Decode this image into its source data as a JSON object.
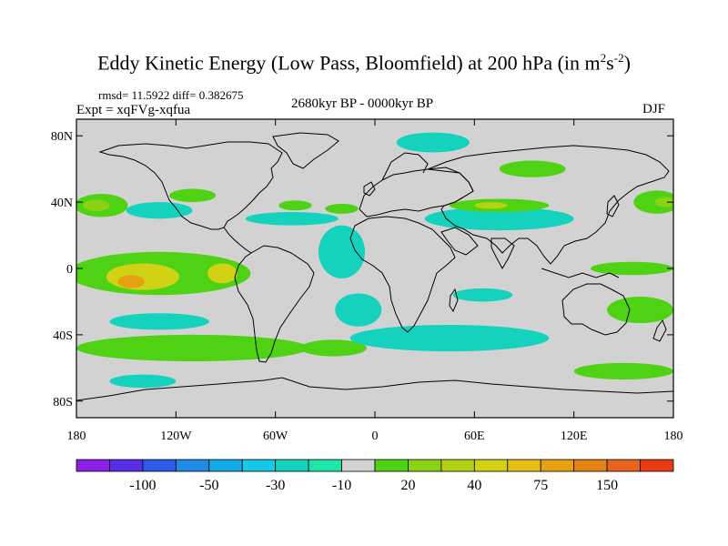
{
  "title": {
    "main": "Eddy Kinetic Energy (Low Pass, Bloomfield) at 200 hPa (in m",
    "sup1": "2",
    "mid": "s",
    "sup2": "-2",
    "end": ")"
  },
  "stats": {
    "rmsd_label": "rmsd= 11.5922 diff= 0.382675"
  },
  "experiment": "Expt = xqFVg-xqfua",
  "period": "2680kyr BP - 0000kyr BP",
  "season": "DJF",
  "axes": {
    "y_ticks": [
      {
        "lat": 80,
        "label": "80N"
      },
      {
        "lat": 40,
        "label": "40N"
      },
      {
        "lat": 0,
        "label": "0"
      },
      {
        "lat": -40,
        "label": "40S"
      },
      {
        "lat": -80,
        "label": "80S"
      }
    ],
    "x_ticks": [
      {
        "lon": -180,
        "label": "180"
      },
      {
        "lon": -120,
        "label": "120W"
      },
      {
        "lon": -60,
        "label": "60W"
      },
      {
        "lon": 0,
        "label": "0"
      },
      {
        "lon": 60,
        "label": "60E"
      },
      {
        "lon": 120,
        "label": "120E"
      },
      {
        "lon": 180,
        "label": "180"
      }
    ]
  },
  "colorbar": {
    "colors": [
      "#8c1ee6",
      "#5a2de6",
      "#2d5ae6",
      "#1e8ce6",
      "#14aae6",
      "#14c8e6",
      "#14d2be",
      "#1ee6aa",
      "#d2d2d2",
      "#50d214",
      "#8cd214",
      "#b4d214",
      "#d2d214",
      "#e6be14",
      "#e6a014",
      "#e68214",
      "#e6641e",
      "#e63c14"
    ],
    "labels": [
      {
        "after_box": 2,
        "label": "-100"
      },
      {
        "after_box": 4,
        "label": "-50"
      },
      {
        "after_box": 6,
        "label": "-30"
      },
      {
        "after_box": 8,
        "label": "-10"
      },
      {
        "after_box": 10,
        "label": "20"
      },
      {
        "after_box": 12,
        "label": "40"
      },
      {
        "after_box": 14,
        "label": "75"
      },
      {
        "after_box": 16,
        "label": "150"
      }
    ]
  },
  "map_data": {
    "background_color": "#d2d2d2",
    "anomaly_regions": [
      {
        "name": "n-pacific-west",
        "lon": -165,
        "lat": 38,
        "rx": 16,
        "ry": 7,
        "color": "#50d214"
      },
      {
        "name": "n-pacific-west-core",
        "lon": -168,
        "lat": 38,
        "rx": 8,
        "ry": 3.5,
        "color": "#8cd214"
      },
      {
        "name": "n-pacific-cyan",
        "lon": -130,
        "lat": 35,
        "rx": 20,
        "ry": 5,
        "color": "#14d2be"
      },
      {
        "name": "n-pacific-green",
        "lon": -110,
        "lat": 44,
        "rx": 14,
        "ry": 4,
        "color": "#50d214"
      },
      {
        "name": "atlantic-cyan-band",
        "lon": -50,
        "lat": 30,
        "rx": 28,
        "ry": 4,
        "color": "#14d2be"
      },
      {
        "name": "atlantic-green-north",
        "lon": -48,
        "lat": 38,
        "rx": 10,
        "ry": 3,
        "color": "#50d214"
      },
      {
        "name": "atlantic-green-north2",
        "lon": -20,
        "lat": 36,
        "rx": 10,
        "ry": 3,
        "color": "#50d214"
      },
      {
        "name": "arctic-cyan",
        "lon": 35,
        "lat": 76,
        "rx": 22,
        "ry": 6,
        "color": "#14d2be"
      },
      {
        "name": "siberia-green",
        "lon": 95,
        "lat": 60,
        "rx": 20,
        "ry": 5,
        "color": "#50d214"
      },
      {
        "name": "asia-cyan",
        "lon": 75,
        "lat": 30,
        "rx": 45,
        "ry": 7,
        "color": "#14d2be"
      },
      {
        "name": "asia-green",
        "lon": 75,
        "lat": 38,
        "rx": 30,
        "ry": 4,
        "color": "#50d214"
      },
      {
        "name": "asia-yellow",
        "lon": 70,
        "lat": 38,
        "rx": 10,
        "ry": 2,
        "color": "#b4d214"
      },
      {
        "name": "n-pacific-east",
        "lon": 170,
        "lat": 40,
        "rx": 14,
        "ry": 7,
        "color": "#50d214"
      },
      {
        "name": "n-pacific-east-core",
        "lon": 175,
        "lat": 40,
        "rx": 6,
        "ry": 3,
        "color": "#8cd214"
      },
      {
        "name": "equatorial-atlantic-cyan",
        "lon": -20,
        "lat": 10,
        "rx": 14,
        "ry": 16,
        "color": "#14d2be"
      },
      {
        "name": "s-atlantic-cyan",
        "lon": -10,
        "lat": -25,
        "rx": 14,
        "ry": 10,
        "color": "#14d2be"
      },
      {
        "name": "tropical-pacific-green",
        "lon": -130,
        "lat": -3,
        "rx": 55,
        "ry": 13,
        "color": "#50d214"
      },
      {
        "name": "tropical-pacific-yellow",
        "lon": -140,
        "lat": -5,
        "rx": 22,
        "ry": 8,
        "color": "#d2d214"
      },
      {
        "name": "tropical-pacific-orange",
        "lon": -147,
        "lat": -8,
        "rx": 8,
        "ry": 4,
        "color": "#e6a014"
      },
      {
        "name": "tropical-pacific-yellow2",
        "lon": -92,
        "lat": -3,
        "rx": 9,
        "ry": 6,
        "color": "#d2d214"
      },
      {
        "name": "south-pacific-cyan",
        "lon": -130,
        "lat": -32,
        "rx": 30,
        "ry": 5,
        "color": "#14d2be"
      },
      {
        "name": "south-pacific-green",
        "lon": -110,
        "lat": -48,
        "rx": 70,
        "ry": 8,
        "color": "#50d214"
      },
      {
        "name": "s-atlantic-band-green",
        "lon": -25,
        "lat": -48,
        "rx": 20,
        "ry": 5,
        "color": "#50d214"
      },
      {
        "name": "southern-ocean-cyan",
        "lon": 45,
        "lat": -42,
        "rx": 60,
        "ry": 8,
        "color": "#14d2be"
      },
      {
        "name": "s-indian-cyan",
        "lon": 65,
        "lat": -16,
        "rx": 18,
        "ry": 4,
        "color": "#14d2be"
      },
      {
        "name": "s-pacific-east-green",
        "lon": 160,
        "lat": -25,
        "rx": 20,
        "ry": 8,
        "color": "#50d214"
      },
      {
        "name": "w-pacific-green",
        "lon": 155,
        "lat": 0,
        "rx": 25,
        "ry": 4,
        "color": "#50d214"
      },
      {
        "name": "s-ocean-green-east",
        "lon": 150,
        "lat": -62,
        "rx": 30,
        "ry": 5,
        "color": "#50d214"
      },
      {
        "name": "antarctic-cyan",
        "lon": -140,
        "lat": -68,
        "rx": 20,
        "ry": 4,
        "color": "#14d2be"
      }
    ]
  }
}
